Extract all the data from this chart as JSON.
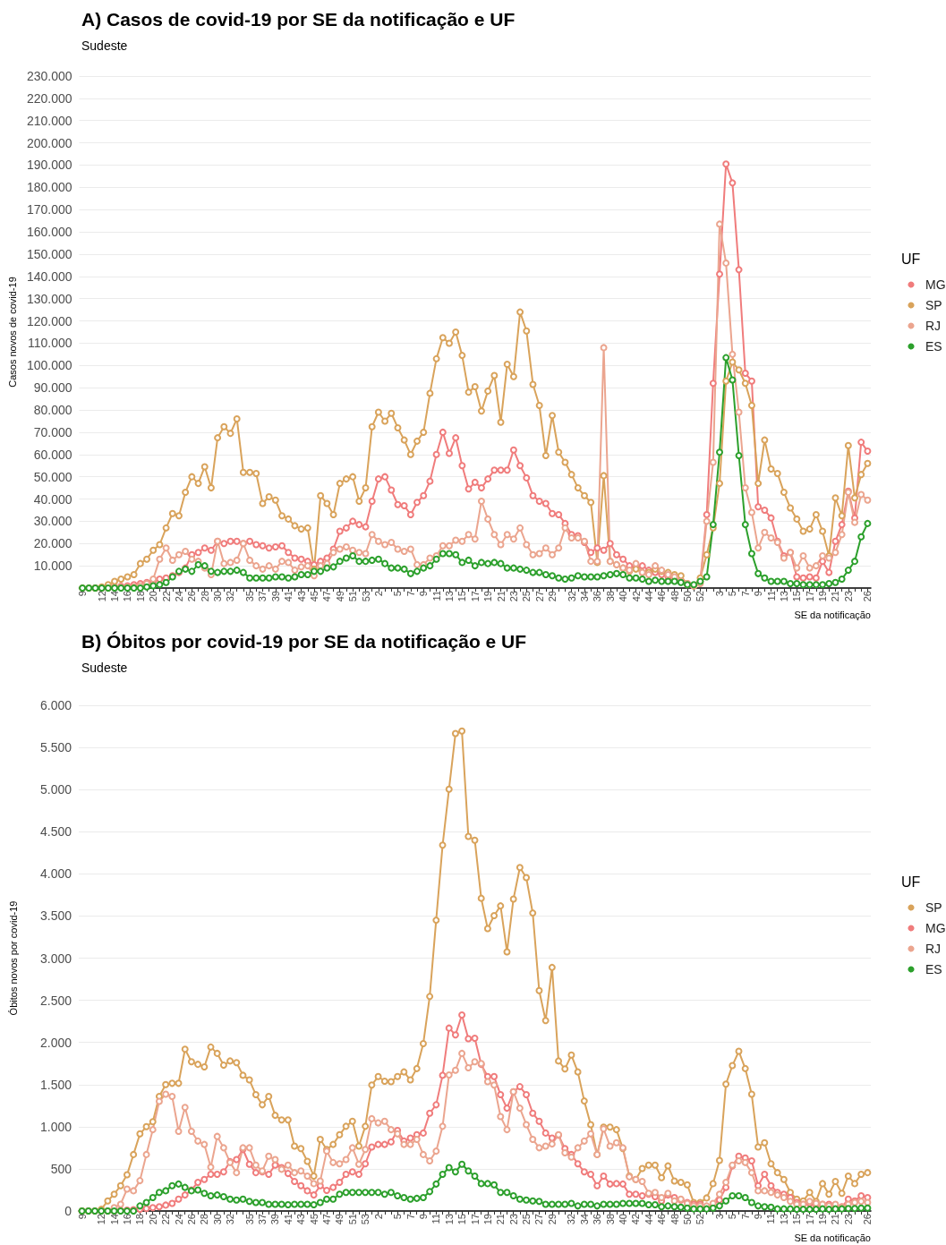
{
  "chart_data": [
    {
      "type": "line",
      "title": "A) Casos de covid-19 por SE da notificação e UF",
      "subtitle": "Sudeste",
      "xlabel": "SE da notificação",
      "ylabel": "Casos novos de covid-19",
      "legend_title": "UF",
      "legend": "right",
      "grid": "y",
      "marker": "circle",
      "line_style": "solid",
      "categories": [
        "9",
        null,
        null,
        "12",
        null,
        "14",
        null,
        "16",
        null,
        "18",
        null,
        "20",
        null,
        "22",
        null,
        "24",
        null,
        "26",
        null,
        "28",
        null,
        "30",
        null,
        "32",
        null,
        null,
        "35",
        null,
        "37",
        null,
        "39",
        null,
        "41",
        null,
        "43",
        null,
        "45",
        null,
        "47",
        null,
        "49",
        null,
        "51",
        null,
        "53",
        null,
        "2",
        null,
        null,
        "5",
        null,
        "7",
        null,
        "9",
        null,
        "11",
        null,
        "13",
        null,
        "15",
        null,
        "17",
        null,
        "19",
        null,
        "21",
        null,
        "23",
        null,
        "25",
        null,
        "27",
        null,
        "29",
        null,
        null,
        "32",
        null,
        "34",
        null,
        "36",
        null,
        "38",
        null,
        "40",
        null,
        "42",
        null,
        "44",
        null,
        "46",
        null,
        "48",
        null,
        "50",
        null,
        "52",
        null,
        null,
        "3",
        null,
        "5",
        null,
        "7",
        null,
        "9",
        null,
        "11",
        null,
        "13",
        null,
        "15",
        null,
        "17",
        null,
        "19",
        null,
        "21",
        null,
        "23",
        null,
        null,
        "26"
      ],
      "ylim": [
        0,
        230000
      ],
      "yticks": [
        {
          "value": 10000,
          "label": "10.000"
        },
        {
          "value": 20000,
          "label": "20.000"
        },
        {
          "value": 30000,
          "label": "30.000"
        },
        {
          "value": 40000,
          "label": "40.000"
        },
        {
          "value": 50000,
          "label": "50.000"
        },
        {
          "value": 60000,
          "label": "60.000"
        },
        {
          "value": 70000,
          "label": "70.000"
        },
        {
          "value": 80000,
          "label": "80.000"
        },
        {
          "value": 90000,
          "label": "90.000"
        },
        {
          "value": 100000,
          "label": "100.000"
        },
        {
          "value": 110000,
          "label": "110.000"
        },
        {
          "value": 120000,
          "label": "120.000"
        },
        {
          "value": 130000,
          "label": "130.000"
        },
        {
          "value": 140000,
          "label": "140.000"
        },
        {
          "value": 150000,
          "label": "150.000"
        },
        {
          "value": 160000,
          "label": "160.000"
        },
        {
          "value": 170000,
          "label": "170.000"
        },
        {
          "value": 180000,
          "label": "180.000"
        },
        {
          "value": 190000,
          "label": "190.000"
        },
        {
          "value": 200000,
          "label": "200.000"
        },
        {
          "value": 210000,
          "label": "210.000"
        },
        {
          "value": 220000,
          "label": "220.000"
        },
        {
          "value": 230000,
          "label": "230.000"
        }
      ],
      "series": [
        {
          "name": "MG",
          "color": "#f07c7c",
          "values": [
            null,
            null,
            0,
            0,
            200,
            500,
            800,
            1000,
            1500,
            2000,
            2500,
            3000,
            4000,
            4500,
            5500,
            7000,
            9000,
            15000,
            16000,
            18000,
            17000,
            21000,
            20000,
            21000,
            21000,
            20000,
            21000,
            19500,
            19000,
            18000,
            18500,
            19000,
            16000,
            13500,
            13000,
            12000,
            10500,
            12000,
            13500,
            17500,
            25500,
            27000,
            30000,
            28500,
            27500,
            39000,
            49000,
            50000,
            44000,
            37500,
            37000,
            33000,
            38500,
            41500,
            48000,
            60000,
            70000,
            60500,
            67500,
            55000,
            44500,
            47500,
            45000,
            49000,
            53000,
            53000,
            53000,
            62000,
            55000,
            49500,
            41500,
            39000,
            38000,
            33500,
            33000,
            29000,
            24000,
            23500,
            20500,
            16000,
            18000,
            17000,
            20000,
            15000,
            13000,
            10000,
            9000,
            10000,
            8000,
            7000,
            6000,
            5000,
            4000,
            3000,
            2000,
            1000,
            3000,
            33000,
            92000,
            141000,
            190500,
            182000,
            143000,
            96500,
            93000,
            36500,
            35000,
            31500,
            21000,
            14500,
            16000,
            5000,
            4500,
            5000,
            4500,
            12000,
            7000,
            21000,
            28500,
            43500,
            31500,
            65500,
            61500
          ]
        },
        {
          "name": "SP",
          "color": "#d9a35b",
          "values": [
            0,
            0,
            0,
            500,
            1500,
            3000,
            4000,
            5000,
            6000,
            11000,
            13000,
            17000,
            19500,
            27000,
            33500,
            32500,
            43000,
            50000,
            47000,
            54500,
            45000,
            67500,
            72500,
            69500,
            76000,
            52000,
            52000,
            51500,
            38000,
            41000,
            39500,
            32500,
            31000,
            28000,
            26500,
            27000,
            8500,
            41500,
            38000,
            33000,
            47000,
            49000,
            50000,
            39000,
            45000,
            72500,
            79000,
            75000,
            78500,
            72000,
            66500,
            60000,
            66000,
            70000,
            87500,
            103000,
            112500,
            110000,
            115000,
            104500,
            88000,
            90500,
            79500,
            88500,
            95500,
            74500,
            100500,
            95000,
            124000,
            115500,
            91500,
            82000,
            59500,
            77500,
            61000,
            56500,
            51000,
            45000,
            41500,
            38500,
            11500,
            50500,
            12000,
            10500,
            9000,
            7500,
            8500,
            7000,
            7000,
            8500,
            7500,
            7000,
            6000,
            5500,
            1500,
            1000,
            4500,
            15000,
            27000,
            47000,
            93000,
            101500,
            98000,
            92000,
            82000,
            47000,
            66500,
            53500,
            51500,
            43000,
            36000,
            31000,
            25500,
            26500,
            33000,
            25500,
            14500,
            40500,
            32500,
            64000,
            40500,
            51000,
            56000
          ]
        },
        {
          "name": "RJ",
          "color": "#eba58f",
          "values": [
            null,
            null,
            null,
            0,
            0,
            200,
            300,
            500,
            500,
            1000,
            2000,
            4000,
            13000,
            18000,
            12500,
            15000,
            16500,
            13000,
            12000,
            9000,
            6000,
            21000,
            11000,
            11500,
            12500,
            20000,
            12500,
            10000,
            8500,
            10000,
            8500,
            12000,
            11500,
            8000,
            9500,
            10000,
            5500,
            10000,
            11000,
            16000,
            17500,
            18500,
            17000,
            16000,
            15500,
            24000,
            21000,
            19500,
            20500,
            17500,
            16500,
            17500,
            10500,
            10500,
            13500,
            14500,
            19000,
            19000,
            21500,
            21000,
            24000,
            22000,
            39000,
            31000,
            24000,
            19500,
            24000,
            22000,
            27000,
            19500,
            15000,
            15500,
            18000,
            15000,
            18000,
            27000,
            22500,
            22500,
            21000,
            12000,
            12000,
            108000,
            12000,
            10500,
            9000,
            8000,
            11000,
            7000,
            6000,
            10000,
            8000,
            6000,
            5000,
            3000,
            2000,
            1000,
            2000,
            30000,
            56500,
            163500,
            146000,
            105000,
            79000,
            45000,
            34000,
            18000,
            25000,
            22500,
            20500,
            13500,
            16000,
            9000,
            14500,
            9000,
            10000,
            14500,
            13500,
            16000,
            24000,
            43000,
            29500,
            42000,
            39500
          ]
        },
        {
          "name": "ES",
          "color": "#2ca02c",
          "values": [
            0,
            0,
            0,
            0,
            0,
            0,
            0,
            0,
            0,
            0,
            500,
            1000,
            1500,
            2500,
            5000,
            7500,
            8500,
            7500,
            10500,
            10000,
            7500,
            7000,
            7500,
            7500,
            8000,
            7000,
            4500,
            4500,
            4500,
            4500,
            5000,
            5000,
            4500,
            5000,
            6000,
            6000,
            7500,
            7500,
            9000,
            9500,
            12000,
            13500,
            14500,
            12000,
            12000,
            12500,
            13000,
            11000,
            9000,
            9000,
            8500,
            6500,
            7500,
            9000,
            10000,
            13000,
            15500,
            15500,
            15000,
            11500,
            12500,
            10000,
            11500,
            11000,
            11500,
            11000,
            9000,
            9000,
            8500,
            8000,
            7000,
            7000,
            6000,
            5500,
            4500,
            4000,
            4500,
            5500,
            5000,
            5000,
            5000,
            5500,
            6000,
            6500,
            6000,
            4500,
            4500,
            4000,
            3000,
            3500,
            3000,
            3000,
            3000,
            2500,
            1500,
            1500,
            3000,
            5000,
            28500,
            61000,
            103500,
            93500,
            59500,
            28500,
            15500,
            6500,
            4500,
            3000,
            3000,
            3000,
            2000,
            2000,
            1500,
            1500,
            1500,
            1500,
            2000,
            2500,
            4000,
            8000,
            12000,
            23000,
            29000
          ]
        }
      ]
    },
    {
      "type": "line",
      "title": "B) Óbitos por covid-19 por SE da notificação e UF",
      "subtitle": "Sudeste",
      "xlabel": "SE da notificação",
      "ylabel": "Óbitos novos por covid-19",
      "legend_title": "UF",
      "legend": "right",
      "grid": "y",
      "marker": "circle",
      "line_style": "solid",
      "categories": [
        "9",
        null,
        null,
        "12",
        null,
        "14",
        null,
        "16",
        null,
        "18",
        null,
        "20",
        null,
        "22",
        null,
        "24",
        null,
        "26",
        null,
        "28",
        null,
        "30",
        null,
        "32",
        null,
        null,
        "35",
        null,
        "37",
        null,
        "39",
        null,
        "41",
        null,
        "43",
        null,
        "45",
        null,
        "47",
        null,
        "49",
        null,
        "51",
        null,
        "53",
        null,
        "2",
        null,
        null,
        "5",
        null,
        "7",
        null,
        "9",
        null,
        "11",
        null,
        "13",
        null,
        "15",
        null,
        "17",
        null,
        "19",
        null,
        "21",
        null,
        "23",
        null,
        "25",
        null,
        "27",
        null,
        "29",
        null,
        null,
        "32",
        null,
        "34",
        null,
        "36",
        null,
        "38",
        null,
        "40",
        null,
        "42",
        null,
        "44",
        null,
        "46",
        null,
        "48",
        null,
        "50",
        null,
        "52",
        null,
        null,
        "3",
        null,
        "5",
        null,
        "7",
        null,
        "9",
        null,
        "11",
        null,
        "13",
        null,
        "15",
        null,
        "17",
        null,
        "19",
        null,
        "21",
        null,
        "23",
        null,
        null,
        "26"
      ],
      "ylim": [
        0,
        6000
      ],
      "yticks": [
        0,
        500,
        {
          "value": 1000,
          "label": "1.000"
        },
        {
          "value": 1500,
          "label": "1.500"
        },
        {
          "value": 2000,
          "label": "2.000"
        },
        {
          "value": 2500,
          "label": "2.500"
        },
        {
          "value": 3000,
          "label": "3.000"
        },
        {
          "value": 3500,
          "label": "3.500"
        },
        {
          "value": 4000,
          "label": "4.000"
        },
        {
          "value": 4500,
          "label": "4.500"
        },
        {
          "value": 5000,
          "label": "5.000"
        },
        {
          "value": 5500,
          "label": "5.500"
        },
        {
          "value": 6000,
          "label": "6.000"
        }
      ],
      "series": [
        {
          "name": "SP",
          "color": "#d9a35b",
          "values": [
            0,
            0,
            0,
            20,
            120,
            200,
            300,
            430,
            670,
            915,
            1000,
            1060,
            1360,
            1500,
            1515,
            1515,
            1920,
            1770,
            1740,
            1710,
            1945,
            1870,
            1730,
            1780,
            1760,
            1610,
            1555,
            1380,
            1260,
            1360,
            1135,
            1080,
            1080,
            770,
            740,
            590,
            415,
            850,
            730,
            790,
            905,
            1005,
            1065,
            770,
            1005,
            1495,
            1595,
            1540,
            1535,
            1595,
            1650,
            1555,
            1690,
            1985,
            2545,
            3450,
            4340,
            5005,
            5665,
            5695,
            4445,
            4400,
            3710,
            3350,
            3505,
            3620,
            3075,
            3700,
            4075,
            3955,
            3535,
            2615,
            2260,
            2890,
            1780,
            1685,
            1850,
            1650,
            1305,
            1025,
            670,
            995,
            995,
            965,
            740,
            415,
            375,
            505,
            545,
            545,
            395,
            535,
            355,
            340,
            310,
            100,
            100,
            155,
            325,
            600,
            1505,
            1725,
            1895,
            1690,
            1385,
            760,
            810,
            560,
            455,
            375,
            220,
            140,
            120,
            220,
            115,
            325,
            200,
            350,
            210,
            415,
            325,
            435,
            455
          ]
        },
        {
          "name": "MG",
          "color": "#f07c7c",
          "values": [
            null,
            null,
            null,
            null,
            0,
            0,
            5,
            10,
            15,
            20,
            30,
            40,
            50,
            70,
            90,
            140,
            190,
            250,
            340,
            375,
            435,
            435,
            465,
            585,
            610,
            730,
            555,
            455,
            465,
            435,
            545,
            515,
            445,
            350,
            300,
            240,
            190,
            300,
            245,
            280,
            340,
            435,
            465,
            435,
            560,
            760,
            790,
            790,
            820,
            955,
            830,
            865,
            905,
            925,
            1160,
            1260,
            1610,
            2170,
            2090,
            2325,
            2045,
            2050,
            1740,
            1595,
            1595,
            1380,
            1220,
            1415,
            1475,
            1380,
            1160,
            1065,
            925,
            865,
            900,
            740,
            670,
            560,
            465,
            435,
            300,
            415,
            320,
            325,
            320,
            200,
            200,
            180,
            200,
            170,
            120,
            190,
            160,
            130,
            100,
            80,
            80,
            50,
            80,
            130,
            280,
            535,
            650,
            630,
            595,
            300,
            435,
            300,
            220,
            200,
            160,
            100,
            80,
            90,
            60,
            80,
            80,
            60,
            50,
            140,
            120,
            180,
            160
          ]
        },
        {
          "name": "RJ",
          "color": "#eba58f",
          "values": [
            0,
            0,
            0,
            0,
            0,
            40,
            80,
            260,
            240,
            360,
            670,
            965,
            1300,
            1385,
            1360,
            945,
            1230,
            945,
            830,
            790,
            520,
            885,
            750,
            575,
            455,
            750,
            750,
            545,
            475,
            650,
            610,
            495,
            545,
            455,
            475,
            415,
            325,
            355,
            710,
            575,
            560,
            610,
            750,
            555,
            730,
            1095,
            1045,
            1065,
            965,
            915,
            790,
            790,
            850,
            670,
            595,
            710,
            1005,
            1615,
            1670,
            1870,
            1700,
            1770,
            1750,
            1535,
            1495,
            1120,
            965,
            1415,
            1220,
            1025,
            850,
            750,
            770,
            795,
            905,
            690,
            640,
            750,
            830,
            915,
            670,
            975,
            770,
            810,
            750,
            405,
            375,
            350,
            210,
            220,
            160,
            210,
            120,
            140,
            90,
            60,
            60,
            60,
            90,
            200,
            340,
            545,
            595,
            575,
            455,
            240,
            240,
            220,
            190,
            160,
            115,
            80,
            80,
            115,
            90,
            80,
            60,
            80,
            45,
            80,
            100,
            115,
            100
          ]
        },
        {
          "name": "ES",
          "color": "#2ca02c",
          "values": [
            0,
            0,
            0,
            0,
            0,
            0,
            0,
            0,
            0,
            60,
            100,
            160,
            220,
            240,
            300,
            320,
            280,
            240,
            250,
            210,
            180,
            190,
            170,
            140,
            130,
            140,
            115,
            100,
            100,
            80,
            80,
            80,
            75,
            80,
            80,
            80,
            75,
            100,
            140,
            140,
            200,
            220,
            220,
            220,
            220,
            220,
            220,
            200,
            220,
            180,
            160,
            140,
            150,
            160,
            230,
            320,
            435,
            515,
            465,
            555,
            475,
            415,
            325,
            325,
            310,
            220,
            220,
            180,
            140,
            130,
            120,
            115,
            80,
            80,
            80,
            80,
            90,
            60,
            80,
            80,
            60,
            80,
            80,
            80,
            90,
            90,
            90,
            90,
            75,
            75,
            50,
            60,
            50,
            45,
            35,
            25,
            25,
            25,
            35,
            60,
            120,
            180,
            180,
            160,
            100,
            60,
            50,
            45,
            25,
            25,
            25,
            20,
            20,
            20,
            20,
            25,
            20,
            25,
            25,
            30,
            30,
            35,
            35
          ]
        }
      ]
    }
  ]
}
